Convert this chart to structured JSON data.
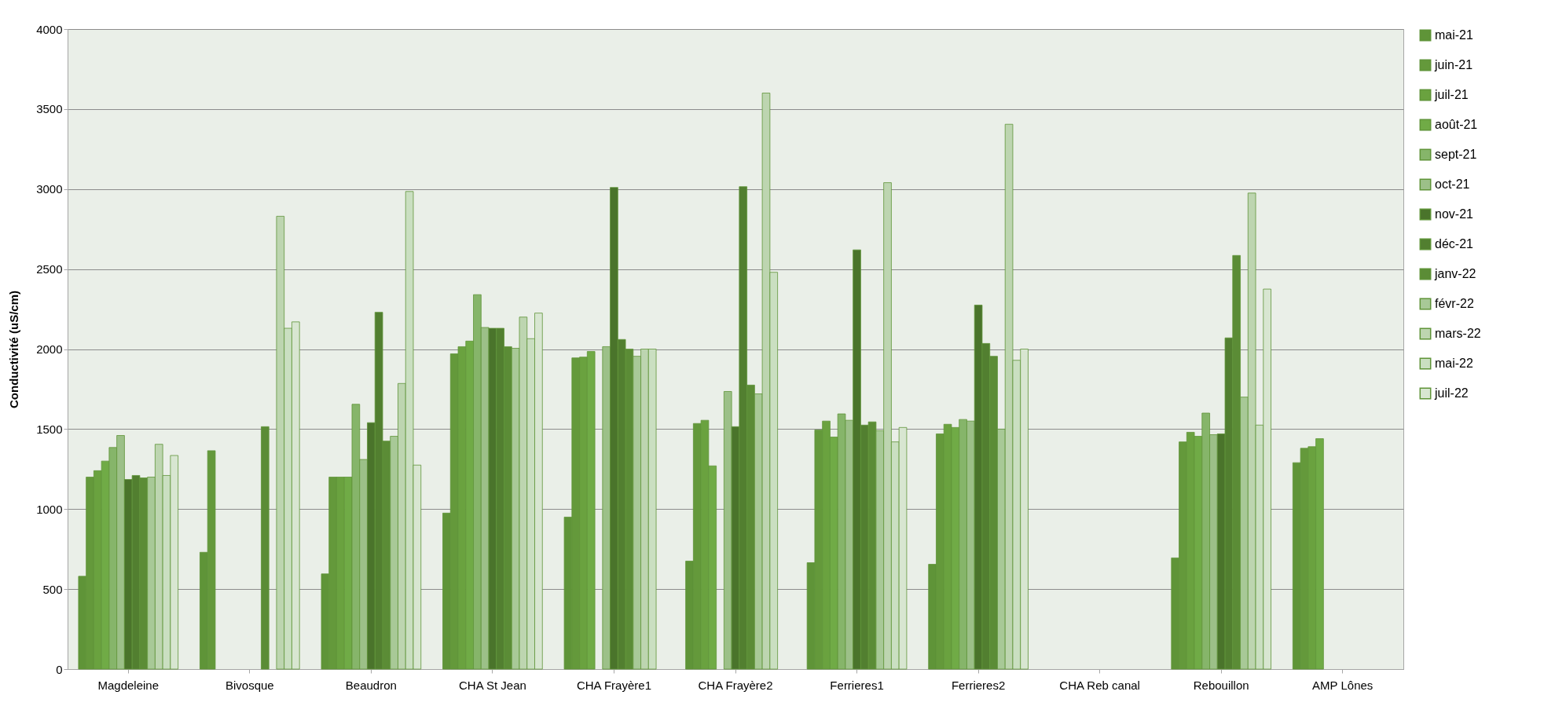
{
  "chart_data": {
    "type": "bar",
    "ylabel": "Conductivité (uS/cm)",
    "categories": [
      "Magdeleine",
      "Bivosque",
      "Beaudron",
      "CHA St Jean",
      "CHA Frayère1",
      "CHA Frayère2",
      "Ferrieres1",
      "Ferrieres2",
      "CHA Reb canal",
      "Rebouillon",
      "AMP Lônes"
    ],
    "series": [
      {
        "name": "mai-21",
        "color": "#5f9438",
        "values": [
          580,
          730,
          595,
          975,
          950,
          675,
          665,
          655,
          null,
          695,
          1290
        ]
      },
      {
        "name": "juin-21",
        "color": "#64993b",
        "values": [
          1200,
          1365,
          1200,
          1970,
          1945,
          1535,
          1495,
          1470,
          null,
          1420,
          1380
        ]
      },
      {
        "name": "juil-21",
        "color": "#6aa23f",
        "values": [
          1240,
          null,
          1200,
          2015,
          1950,
          1555,
          1550,
          1530,
          null,
          1480,
          1390
        ]
      },
      {
        "name": "août-21",
        "color": "#70ab46",
        "values": [
          1300,
          null,
          1200,
          2050,
          1985,
          1270,
          1450,
          1510,
          null,
          1455,
          1440
        ]
      },
      {
        "name": "sept-21",
        "color": "#86b56a",
        "values": [
          1385,
          null,
          1655,
          2340,
          null,
          null,
          1595,
          1560,
          null,
          1600,
          null
        ]
      },
      {
        "name": "oct-21",
        "color": "#9cc088",
        "values": [
          1460,
          null,
          1310,
          2135,
          2015,
          1735,
          1555,
          1550,
          null,
          1465,
          null
        ]
      },
      {
        "name": "nov-21",
        "color": "#4a742b",
        "values": [
          1185,
          null,
          1540,
          2130,
          3010,
          1515,
          2620,
          2275,
          null,
          1470,
          null
        ]
      },
      {
        "name": "déc-21",
        "color": "#527f30",
        "values": [
          1210,
          null,
          2230,
          2130,
          2060,
          3015,
          1525,
          2035,
          null,
          2070,
          null
        ]
      },
      {
        "name": "janv-22",
        "color": "#5b8c36",
        "values": [
          1195,
          1515,
          1425,
          2015,
          2000,
          1775,
          1545,
          1955,
          null,
          2585,
          null
        ]
      },
      {
        "name": "févr-22",
        "color": "#a8c997",
        "values": [
          1200,
          null,
          1455,
          2005,
          1955,
          1720,
          1490,
          1500,
          null,
          1700,
          null
        ]
      },
      {
        "name": "mars-22",
        "color": "#bdd5b0",
        "values": [
          1405,
          2830,
          1785,
          2200,
          2000,
          3600,
          3040,
          3405,
          null,
          2975,
          null
        ]
      },
      {
        "name": "mai-22",
        "color": "#cadfc1",
        "values": [
          1210,
          2130,
          2985,
          2065,
          2000,
          2480,
          1420,
          1930,
          null,
          1525,
          null
        ]
      },
      {
        "name": "juil-22",
        "color": "#d8e6d1",
        "values": [
          1335,
          2170,
          1275,
          2225,
          null,
          null,
          1510,
          2000,
          null,
          2375,
          null
        ]
      }
    ],
    "ylim": [
      0,
      4000
    ],
    "yticks": [
      0,
      500,
      1000,
      1500,
      2000,
      2500,
      3000,
      3500,
      4000
    ],
    "grid": "y",
    "legend": "right"
  }
}
